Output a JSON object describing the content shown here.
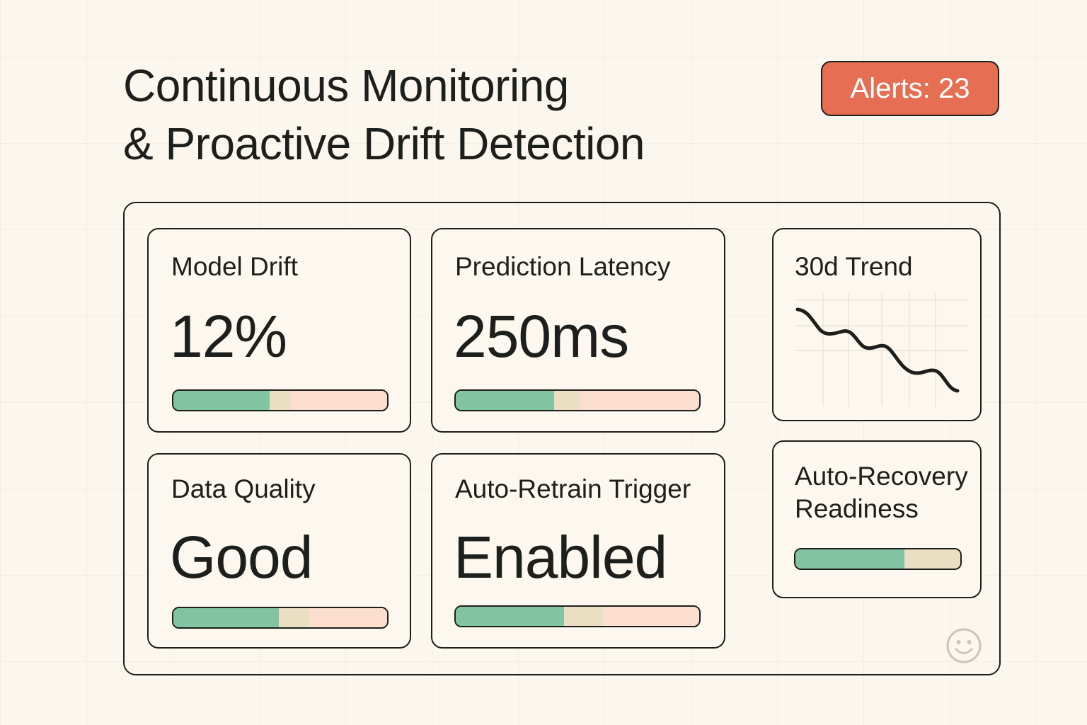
{
  "header": {
    "title_line1": "Continuous Monitoring",
    "title_line2": "& Proactive Drift Detection",
    "alerts_label": "Alerts: 23",
    "alerts_color": "#e66e52"
  },
  "colors": {
    "background": "#fbf7ee",
    "ink": "#1d1f1c",
    "good": "#82c4a2",
    "neutral": "#ebdfc3",
    "warn": "#fbdecd"
  },
  "cards": {
    "model_drift": {
      "label": "Model Drift",
      "value": "12%",
      "bar": {
        "good_pct": 45,
        "neutral_pct": 10
      }
    },
    "latency": {
      "label": "Prediction Latency",
      "value": "250ms",
      "bar": {
        "good_pct": 40.5,
        "neutral_pct": 10.5
      }
    },
    "data_quality": {
      "label": "Data Quality",
      "value": "Good",
      "bar": {
        "good_pct": 49.5,
        "neutral_pct": 14
      }
    },
    "retrain": {
      "label": "Auto-Retrain Trigger",
      "value": "Enabled",
      "bar": {
        "good_pct": 44.5,
        "neutral_pct": 16
      }
    },
    "trend": {
      "label": "30d Trend"
    },
    "recovery": {
      "label_line1": "Auto-Recovery",
      "label_line2": "Readiness",
      "bar": {
        "good_pct": 66,
        "neutral_pct": 34
      }
    }
  },
  "chart_data": {
    "type": "line",
    "title": "30d Trend",
    "x": [
      0,
      5,
      10,
      15,
      20,
      25,
      30
    ],
    "values": [
      100,
      78,
      72,
      60,
      55,
      40,
      30
    ],
    "xlabel": "",
    "ylabel": "",
    "grid": true,
    "legend": "none"
  },
  "footer": {
    "icon": "smiley-icon"
  }
}
